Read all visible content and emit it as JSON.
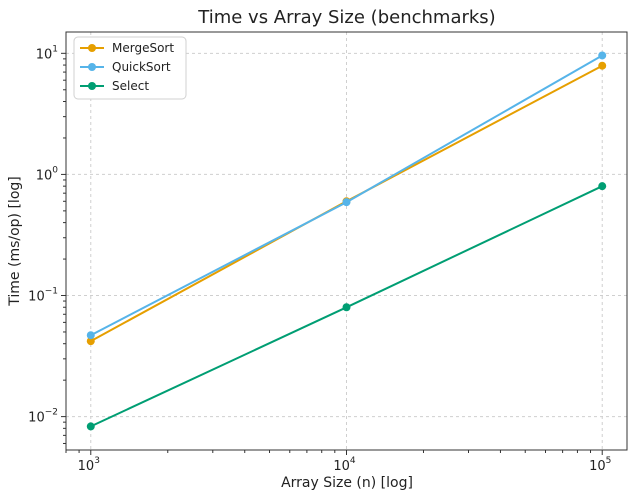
{
  "chart_data": {
    "type": "line",
    "title": "Time vs Array Size (benchmarks)",
    "xlabel": "Array Size (n) [log]",
    "ylabel": "Time (ms/op) [log]",
    "xscale": "log",
    "yscale": "log",
    "xlim": [
      800,
      125000
    ],
    "ylim": [
      0.0053,
      15
    ],
    "grid": true,
    "legend_position": "top-left",
    "x": [
      1000,
      10000,
      100000
    ],
    "x_ticks": [
      {
        "value": 1000,
        "base": "10",
        "exp": "3"
      },
      {
        "value": 10000,
        "base": "10",
        "exp": "4"
      },
      {
        "value": 100000,
        "base": "10",
        "exp": "5"
      }
    ],
    "y_ticks": [
      {
        "value": 0.01,
        "base": "10",
        "exp": "−2"
      },
      {
        "value": 0.1,
        "base": "10",
        "exp": "−1"
      },
      {
        "value": 1,
        "base": "10",
        "exp": "0"
      },
      {
        "value": 10,
        "base": "10",
        "exp": "1"
      }
    ],
    "series": [
      {
        "name": "MergeSort",
        "color": "#E69F00",
        "values": [
          0.042,
          0.6,
          7.9
        ]
      },
      {
        "name": "QuickSort",
        "color": "#56B4E9",
        "values": [
          0.047,
          0.59,
          9.6
        ]
      },
      {
        "name": "Select",
        "color": "#009E73",
        "values": [
          0.0083,
          0.08,
          0.8
        ]
      }
    ]
  }
}
